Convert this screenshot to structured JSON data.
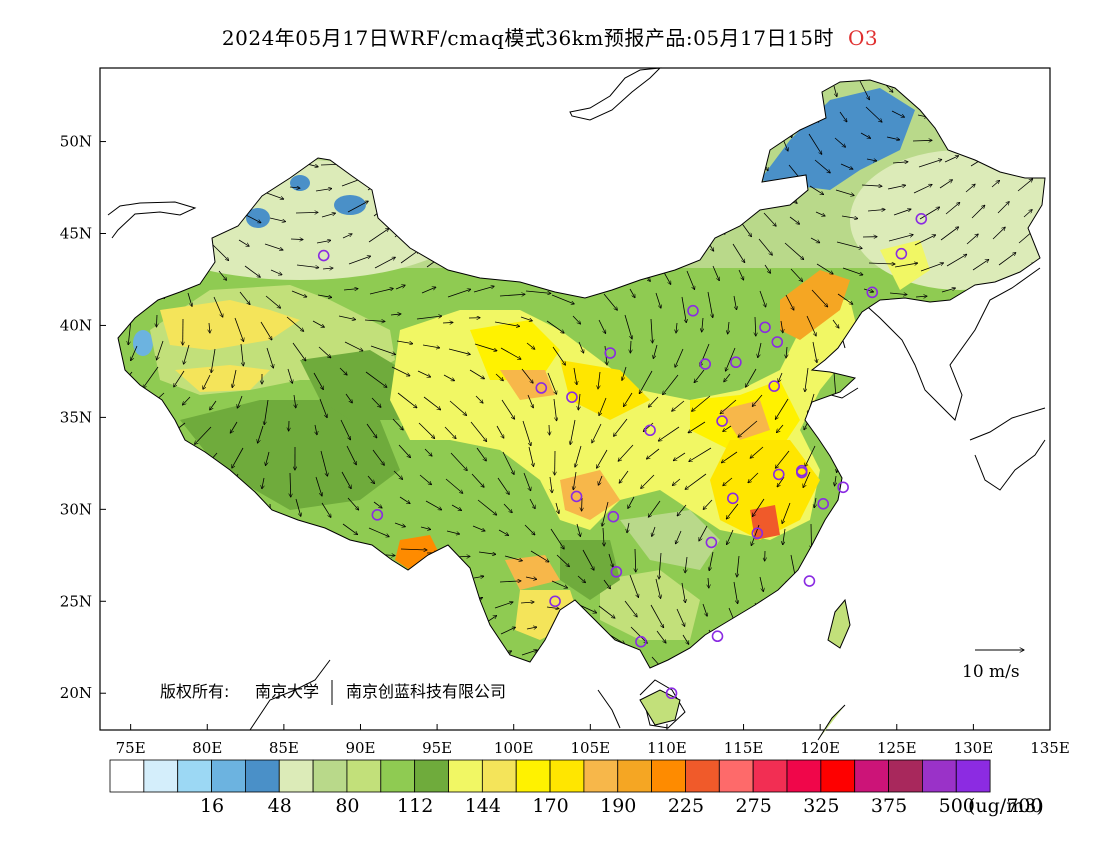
{
  "title": {
    "main": "2024年05月17日WRF/cmaq模式36km预报产品:05月17日15时",
    "species": "O3"
  },
  "axes": {
    "lon_ticks": [
      "75E",
      "80E",
      "85E",
      "90E",
      "95E",
      "100E",
      "105E",
      "110E",
      "115E",
      "120E",
      "125E",
      "130E",
      "135E"
    ],
    "lat_ticks": [
      "20N",
      "25N",
      "30N",
      "35N",
      "40N",
      "45N",
      "50N"
    ],
    "lon_range": [
      73,
      135
    ],
    "lat_range": [
      18,
      54
    ]
  },
  "copyright": {
    "label": "版权所有:",
    "org1": "南京大学",
    "org2": "南京创蓝科技有限公司"
  },
  "wind_scale": {
    "label": "10 m/s"
  },
  "colorbar": {
    "unit": "(ug/m3)",
    "colors": [
      "#ffffff",
      "#d4eefb",
      "#9cd8f4",
      "#6cb3e0",
      "#4a90c8",
      "#dcebb8",
      "#b9d98a",
      "#c2e07a",
      "#8fcb52",
      "#6fab3c",
      "#f1f764",
      "#f4e45a",
      "#fff200",
      "#ffe600",
      "#f7b74a",
      "#f5a623",
      "#fe8b00",
      "#f05a2a",
      "#fe6a6a",
      "#f22e53",
      "#f0064a",
      "#fe0000",
      "#cc1478",
      "#a8285c",
      "#9a32c8",
      "#8c2be2"
    ],
    "labels": [
      {
        "text": "16",
        "boundary": 2
      },
      {
        "text": "48",
        "boundary": 3
      },
      {
        "text": "80",
        "boundary": 4
      },
      {
        "text": "112",
        "boundary": 5
      },
      {
        "text": "144",
        "boundary": 6
      },
      {
        "text": "170",
        "boundary": 7
      },
      {
        "text": "190",
        "boundary": 8
      },
      {
        "text": "225",
        "boundary": 9
      },
      {
        "text": "275",
        "boundary": 10
      },
      {
        "text": "325",
        "boundary": 11
      },
      {
        "text": "375",
        "boundary": 12
      },
      {
        "text": "500",
        "boundary": 13
      },
      {
        "text": "700",
        "boundary": 14
      }
    ]
  },
  "cities": [
    {
      "lon": 87.6,
      "lat": 43.8
    },
    {
      "lon": 91.1,
      "lat": 29.7
    },
    {
      "lon": 101.8,
      "lat": 36.6
    },
    {
      "lon": 103.8,
      "lat": 36.1
    },
    {
      "lon": 106.3,
      "lat": 38.5
    },
    {
      "lon": 111.7,
      "lat": 40.8
    },
    {
      "lon": 112.5,
      "lat": 37.9
    },
    {
      "lon": 114.5,
      "lat": 38.0
    },
    {
      "lon": 116.4,
      "lat": 39.9
    },
    {
      "lon": 117.2,
      "lat": 39.1
    },
    {
      "lon": 117.0,
      "lat": 36.7
    },
    {
      "lon": 113.6,
      "lat": 34.8
    },
    {
      "lon": 108.9,
      "lat": 34.3
    },
    {
      "lon": 104.1,
      "lat": 30.7
    },
    {
      "lon": 106.5,
      "lat": 29.6
    },
    {
      "lon": 114.3,
      "lat": 30.6
    },
    {
      "lon": 117.3,
      "lat": 31.9
    },
    {
      "lon": 118.8,
      "lat": 32.1
    },
    {
      "lon": 120.2,
      "lat": 30.3
    },
    {
      "lon": 121.5,
      "lat": 31.2
    },
    {
      "lon": 112.9,
      "lat": 28.2
    },
    {
      "lon": 115.9,
      "lat": 28.7
    },
    {
      "lon": 119.3,
      "lat": 26.1
    },
    {
      "lon": 113.3,
      "lat": 23.1
    },
    {
      "lon": 108.3,
      "lat": 22.8
    },
    {
      "lon": 110.3,
      "lat": 20.0
    },
    {
      "lon": 102.7,
      "lat": 25.0
    },
    {
      "lon": 106.7,
      "lat": 26.6
    },
    {
      "lon": 123.4,
      "lat": 41.8
    },
    {
      "lon": 125.3,
      "lat": 43.9
    },
    {
      "lon": 126.6,
      "lat": 45.8
    },
    {
      "lon": 118.8,
      "lat": 32.0
    }
  ]
}
